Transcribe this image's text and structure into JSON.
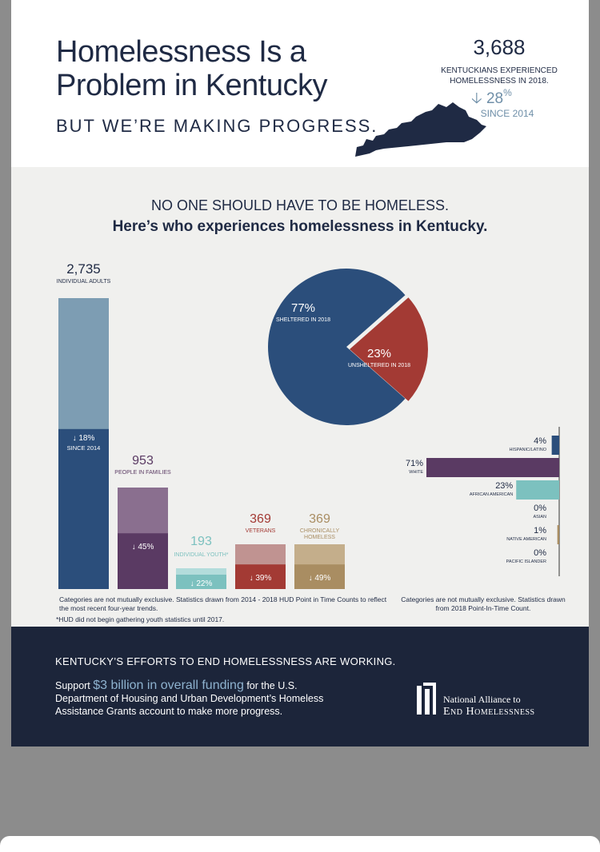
{
  "header": {
    "title": "Homelessness Is a Problem in Kentucky",
    "subtitle": "BUT WE’RE MAKING PROGRESS.",
    "total": "3,688",
    "total_caption": "KENTUCKIANS EXPERIENCED HOMELESSNESS IN 2018.",
    "total_change": "28",
    "total_change_unit": "%",
    "total_since": "SINCE 2014"
  },
  "section": {
    "headline": "NO ONE SHOULD HAVE TO BE HOMELESS.",
    "subheadline": "Here’s who experiences homelessness in Kentucky."
  },
  "colors": {
    "navy": "#1f2a44",
    "blue": "#2b4e7b",
    "blue_light": "#7d9db3",
    "purple": "#5a3a63",
    "purple_light": "#8a6f8f",
    "teal": "#7cc1bf",
    "teal_light": "#b3dcdb",
    "red": "#a33a34",
    "red_light": "#c09391",
    "tan": "#a98d62",
    "tan_light": "#c4ae8b",
    "footer": "#1c253a"
  },
  "chart_data": [
    {
      "type": "bar",
      "categories": [
        "INDIVIDUAL ADULTS",
        "PEOPLE IN FAMILIES",
        "INDIVIDUAL YOUTH*",
        "VETERANS",
        "CHRONICALLY HOMELESS"
      ],
      "values": [
        2735,
        953,
        193,
        369,
        369
      ],
      "value_labels": [
        "2,735",
        "953",
        "193",
        "369",
        "369"
      ],
      "change_since_2014_pct": [
        -18,
        -45,
        -22,
        -39,
        -49
      ],
      "change_labels": [
        "18%",
        "45%",
        "22%",
        "39%",
        "49%"
      ],
      "change_caption": "SINCE 2014",
      "notes": [
        "Categories are not mutually exclusive. Statistics drawn from 2014 - 2018 HUD Point in Time Counts to reflect the most recent four-year trends.",
        "*HUD did not begin gathering youth statistics until 2017."
      ]
    },
    {
      "type": "pie",
      "labels": [
        "SHELTERED IN 2018",
        "UNSHELTERED IN 2018"
      ],
      "values": [
        77,
        23
      ],
      "value_labels": [
        "77",
        "23"
      ],
      "unit": "%"
    },
    {
      "type": "bar",
      "orientation": "horizontal",
      "categories": [
        "HISPANIC/LATINO",
        "WHITE",
        "AFRICAN AMERICAN",
        "ASIAN",
        "NATIVE AMERICAN",
        "PACIFIC ISLANDER"
      ],
      "values": [
        4,
        71,
        23,
        0,
        1,
        0
      ],
      "value_labels": [
        "4",
        "71",
        "23",
        "0",
        "1",
        "0"
      ],
      "unit": "%",
      "note": "Categories are not mutually exclusive. Statistics drawn from 2018 Point-In-Time Count."
    }
  ],
  "footer": {
    "headline": "KENTUCKY’S EFFORTS TO END HOMELESSNESS ARE WORKING.",
    "body_pre": "Support ",
    "body_highlight": "$3 billion in overall funding",
    "body_post": " for the U.S. Department of Housing and Urban Development’s Homeless Assistance Grants account to make more progress.",
    "logo_line1": "National Alliance to",
    "logo_line2": "End Homelessness"
  }
}
